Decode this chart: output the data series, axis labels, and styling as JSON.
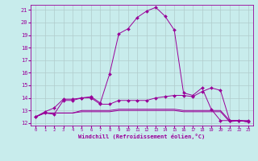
{
  "xlabel": "Windchill (Refroidissement éolien,°C)",
  "xlim": [
    -0.5,
    23.5
  ],
  "ylim": [
    11.8,
    21.4
  ],
  "xticks": [
    0,
    1,
    2,
    3,
    4,
    5,
    6,
    7,
    8,
    9,
    10,
    11,
    12,
    13,
    14,
    15,
    16,
    17,
    18,
    19,
    20,
    21,
    22,
    23
  ],
  "yticks": [
    12,
    13,
    14,
    15,
    16,
    17,
    18,
    19,
    20,
    21
  ],
  "line_color": "#990099",
  "bg_color": "#c8ecec",
  "grid_color": "#b0cccc",
  "series": [
    [
      12.5,
      12.8,
      12.7,
      13.8,
      13.8,
      14.0,
      14.0,
      13.5,
      13.5,
      13.8,
      13.8,
      13.8,
      13.8,
      14.0,
      14.1,
      14.2,
      14.2,
      14.1,
      14.5,
      14.8,
      14.6,
      12.2,
      12.2,
      12.2
    ],
    [
      12.5,
      12.8,
      12.8,
      12.8,
      12.8,
      13.0,
      13.0,
      13.0,
      13.0,
      13.1,
      13.1,
      13.1,
      13.1,
      13.1,
      13.1,
      13.1,
      13.0,
      13.0,
      13.0,
      13.0,
      13.0,
      12.2,
      12.2,
      12.1
    ],
    [
      12.5,
      12.8,
      12.8,
      12.8,
      12.8,
      12.9,
      12.9,
      12.9,
      12.9,
      13.0,
      13.0,
      13.0,
      13.0,
      13.0,
      13.0,
      13.0,
      12.9,
      12.9,
      12.9,
      12.9,
      12.9,
      12.1,
      12.2,
      12.1
    ],
    [
      12.5,
      12.9,
      13.2,
      13.9,
      13.9,
      14.0,
      14.1,
      13.6,
      15.9,
      19.1,
      19.5,
      20.4,
      20.9,
      21.2,
      20.5,
      19.4,
      14.4,
      14.2,
      14.8,
      13.1,
      12.2,
      12.2,
      12.2,
      12.1
    ]
  ],
  "markers": [
    true,
    false,
    false,
    true
  ]
}
